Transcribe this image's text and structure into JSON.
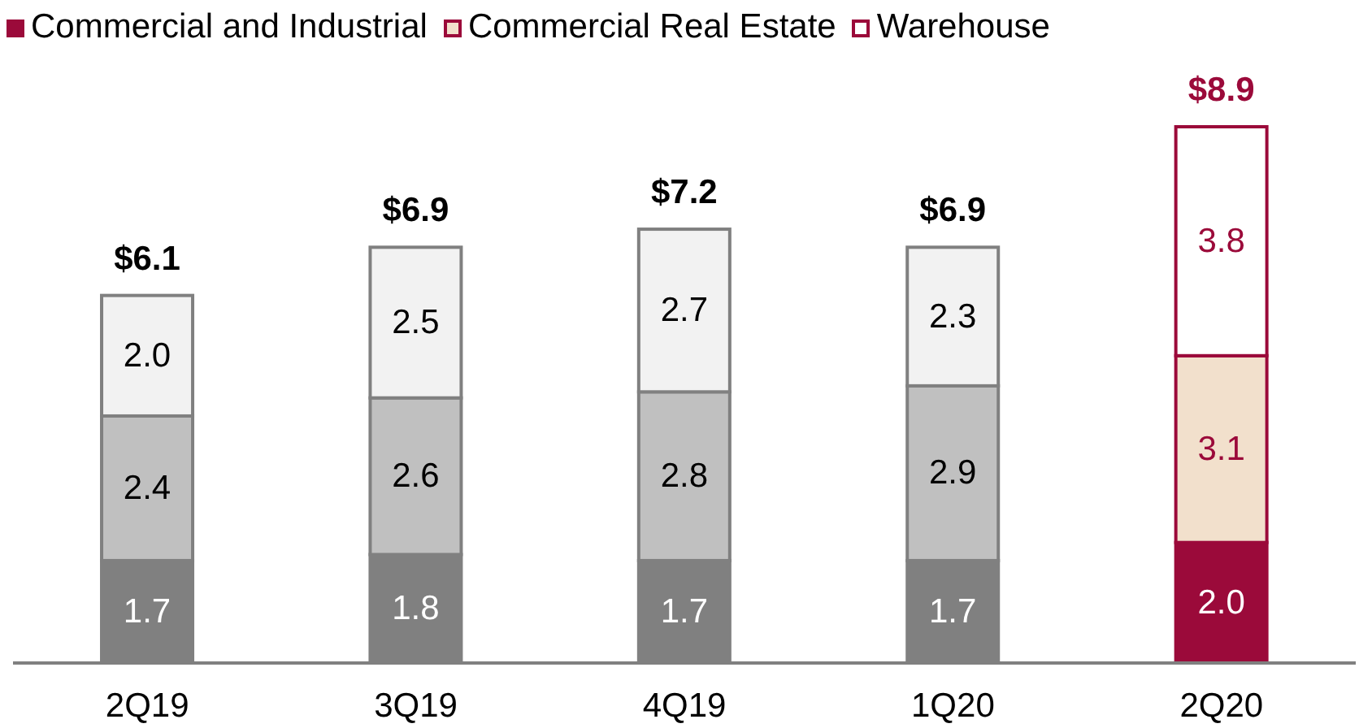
{
  "chart_data": {
    "type": "bar",
    "stacked": true,
    "categories": [
      "2Q19",
      "3Q19",
      "4Q19",
      "1Q20",
      "2Q20"
    ],
    "series": [
      {
        "name": "Commercial and Industrial",
        "color": "#9b0a3a",
        "colors": [
          "#808080",
          "#808080",
          "#808080",
          "#808080",
          "#9b0a3a"
        ],
        "values": [
          1.7,
          1.8,
          1.7,
          1.7,
          2.0
        ],
        "value_labels": [
          "1.7",
          "1.8",
          "1.7",
          "1.7",
          "2.0"
        ]
      },
      {
        "name": "Commercial Real Estate",
        "color": "#f2e0cc",
        "colors": [
          "#c0c0c0",
          "#c0c0c0",
          "#c0c0c0",
          "#c0c0c0",
          "#f2e0cc"
        ],
        "values": [
          2.4,
          2.6,
          2.8,
          2.9,
          3.1
        ],
        "value_labels": [
          "2.4",
          "2.6",
          "2.8",
          "2.9",
          "3.1"
        ]
      },
      {
        "name": "Warehouse",
        "color": "#ffffff",
        "colors": [
          "#f2f2f2",
          "#f2f2f2",
          "#f2f2f2",
          "#f2f2f2",
          "#ffffff"
        ],
        "values": [
          2.0,
          2.5,
          2.7,
          2.3,
          3.8
        ],
        "value_labels": [
          "2.0",
          "2.5",
          "2.7",
          "2.3",
          "3.8"
        ]
      }
    ],
    "totals": [
      "$6.1",
      "$6.9",
      "$7.2",
      "$6.9",
      "$8.9"
    ],
    "legend": "top left"
  }
}
